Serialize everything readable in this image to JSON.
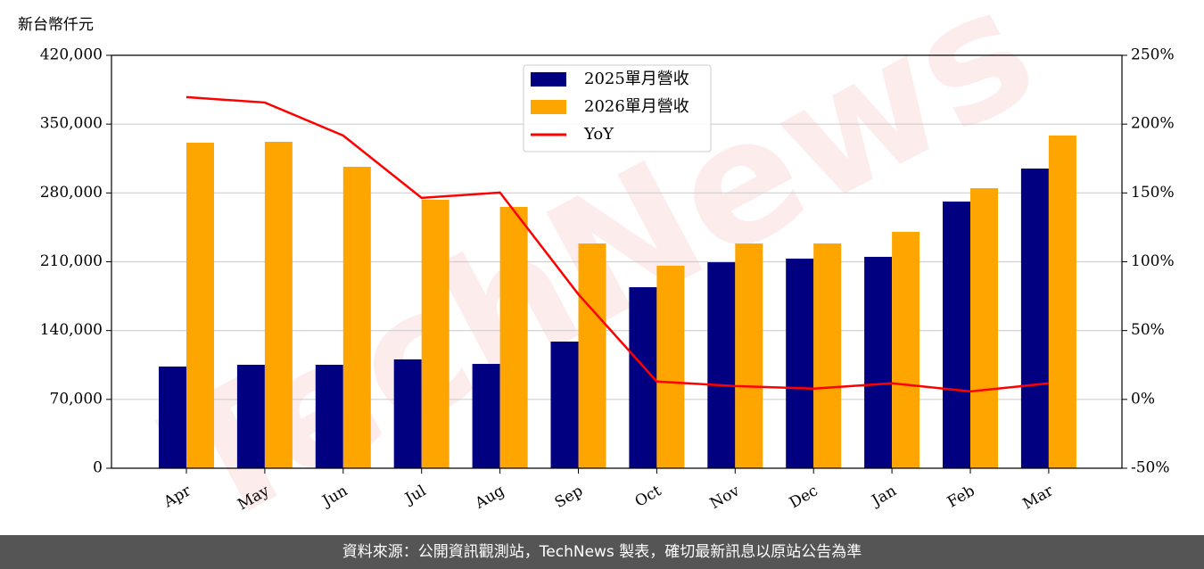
{
  "chart_data": {
    "type": "bar_line",
    "y_label": "新台幣仟元",
    "watermark": "TechNews",
    "categories": [
      "Apr",
      "May",
      "Jun",
      "Jul",
      "Aug",
      "Sep",
      "Oct",
      "Nov",
      "Dec",
      "Jan",
      "Feb",
      "Mar"
    ],
    "series": [
      {
        "name": "2025單月營收",
        "type": "bar",
        "color": "#000080",
        "values": [
          103400,
          105200,
          105200,
          110700,
          106100,
          128800,
          184100,
          209500,
          213200,
          215000,
          271200,
          304800
        ]
      },
      {
        "name": "2026單月營收",
        "type": "bar",
        "color": "#ffa500",
        "values": [
          331100,
          332000,
          306600,
          273100,
          265800,
          228600,
          205900,
          228600,
          228600,
          240400,
          284800,
          338400
        ]
      },
      {
        "name": "YoY",
        "type": "line",
        "axis": "y2",
        "color": "#ff0000",
        "values": [
          219.6,
          215.7,
          191.7,
          146.4,
          150.3,
          76.4,
          13,
          9.7,
          7.8,
          11.7,
          5.8,
          11.7
        ]
      }
    ],
    "ylim": [
      0,
      420000
    ],
    "yticks": [
      0,
      {
        "value": 70000,
        "label": "70,000"
      },
      {
        "value": 140000,
        "label": "140,000"
      },
      {
        "value": 210000,
        "label": "210,000"
      },
      {
        "value": 280000,
        "label": "280,000"
      },
      {
        "value": 350000,
        "label": "350,000"
      },
      {
        "value": 420000,
        "label": "420,000"
      }
    ],
    "y2lim": [
      -50,
      250
    ],
    "y2ticks": [
      {
        "value": -50,
        "label": "-50%"
      },
      {
        "value": 0,
        "label": "0%"
      },
      {
        "value": 50,
        "label": "50%"
      },
      {
        "value": 100,
        "label": "100%"
      },
      {
        "value": 150,
        "label": "150%"
      },
      {
        "value": 200,
        "label": "200%"
      },
      {
        "value": 250,
        "label": "250%"
      }
    ],
    "grid": true,
    "legend": "upper center"
  },
  "footer": "資料來源：公開資訊觀測站，TechNews 製表，確切最新訊息以原站公告為準"
}
